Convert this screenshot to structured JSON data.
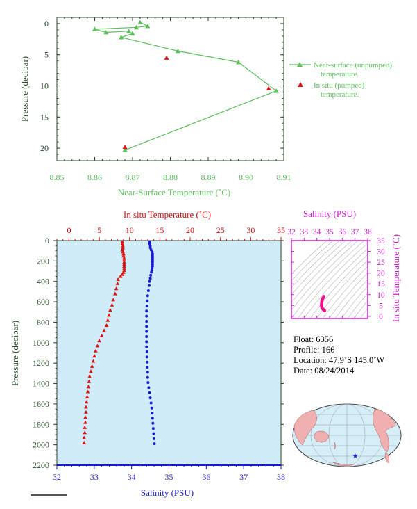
{
  "colors": {
    "near_surface": "#5cbf5c",
    "temperature": "#dd1111",
    "salinity": "#1a1ad6",
    "ts_magenta": "#cc22cc",
    "ts_points": "#ee1188",
    "plot_bg": "#d0ecf8",
    "axis_dark": "#2a4a2a",
    "land": "#f0b0b0",
    "ocean": "#d6eef8"
  },
  "top_chart": {
    "xlabel": "Near-Surface Temperature (˚C)",
    "ylabel": "Pressure (decibar)",
    "xticks": [
      "8.85",
      "8.86",
      "8.87",
      "8.88",
      "8.89",
      "8.90",
      "8.91"
    ],
    "yticks": [
      "0",
      "5",
      "10",
      "15",
      "20"
    ],
    "legend": {
      "line1": "Near-surface (unpumped)",
      "line2": "temperature.",
      "line3": "In situ (pumped)",
      "line4": "temperature."
    }
  },
  "main_chart": {
    "top_xlabel": "In situ Temperature (˚C)",
    "bottom_xlabel": "Salinity (PSU)",
    "ylabel": "Pressure (decibar)",
    "temp_ticks": [
      "0",
      "5",
      "10",
      "15",
      "20",
      "25",
      "30",
      "35"
    ],
    "sal_ticks": [
      "32",
      "33",
      "34",
      "35",
      "36",
      "37",
      "38"
    ],
    "pressure_ticks": [
      "0",
      "200",
      "400",
      "600",
      "800",
      "1000",
      "1200",
      "1400",
      "1600",
      "1800",
      "2000",
      "2200"
    ]
  },
  "ts_chart": {
    "title": "Salinity (PSU)",
    "ylabel": "In situ Temperature (˚C)",
    "xticks": [
      "32",
      "33",
      "34",
      "35",
      "36",
      "37",
      "38"
    ],
    "yticks": [
      "0",
      "5",
      "10",
      "15",
      "20",
      "25",
      "30",
      "35"
    ]
  },
  "info": {
    "float": "Float:  6356",
    "profile": "Profile:  166",
    "location": "Location:  47.9˚S  145.0˚W",
    "date": "Date:  08/24/2014"
  },
  "chart_data": [
    {
      "type": "line",
      "xlabel": "Near-Surface Temperature (˚C)",
      "ylabel": "Pressure (decibar)",
      "xlim": [
        8.85,
        8.91
      ],
      "ylim": [
        22,
        -1
      ],
      "series": [
        {
          "name": "Near-surface (unpumped) temperature.",
          "points": [
            [
              8.872,
              -0.2
            ],
            [
              8.874,
              0.4
            ],
            [
              8.871,
              0.6
            ],
            [
              8.86,
              0.9
            ],
            [
              8.863,
              1.4
            ],
            [
              8.869,
              1.2
            ],
            [
              8.87,
              1.6
            ],
            [
              8.867,
              2.2
            ],
            [
              8.882,
              4.4
            ],
            [
              8.898,
              6.2
            ],
            [
              8.908,
              10.8
            ],
            [
              8.868,
              20.3
            ]
          ]
        },
        {
          "name": "In situ (pumped) temperature.",
          "points": [
            [
              8.879,
              5.5
            ],
            [
              8.906,
              10.4
            ],
            [
              8.868,
              19.8
            ]
          ]
        }
      ]
    },
    {
      "type": "scatter",
      "xlabel": "In situ Temperature (˚C)",
      "ylabel": "Pressure (decibar)",
      "xlim": [
        -2,
        35
      ],
      "ylim": [
        2200,
        0
      ],
      "series": [
        {
          "points": [
            [
              8.8,
              10
            ],
            [
              8.8,
              30
            ],
            [
              8.9,
              50
            ],
            [
              8.9,
              70
            ],
            [
              8.8,
              90
            ],
            [
              8.9,
              110
            ],
            [
              9.0,
              130
            ],
            [
              9.0,
              150
            ],
            [
              9.1,
              170
            ],
            [
              9.1,
              190
            ],
            [
              9.1,
              210
            ],
            [
              9.1,
              230
            ],
            [
              9.1,
              250
            ],
            [
              9.1,
              270
            ],
            [
              9.1,
              290
            ],
            [
              9.0,
              310
            ],
            [
              8.8,
              330
            ],
            [
              8.5,
              350
            ],
            [
              8.1,
              380
            ],
            [
              8.0,
              420
            ],
            [
              7.8,
              470
            ],
            [
              7.6,
              520
            ],
            [
              7.3,
              580
            ],
            [
              7.1,
              630
            ],
            [
              6.8,
              680
            ],
            [
              6.6,
              730
            ],
            [
              6.4,
              780
            ],
            [
              6.2,
              830
            ],
            [
              5.8,
              880
            ],
            [
              5.4,
              930
            ],
            [
              5.0,
              980
            ],
            [
              4.7,
              1030
            ],
            [
              4.4,
              1080
            ],
            [
              4.2,
              1130
            ],
            [
              4.0,
              1180
            ],
            [
              3.8,
              1230
            ],
            [
              3.6,
              1280
            ],
            [
              3.4,
              1330
            ],
            [
              3.3,
              1380
            ],
            [
              3.2,
              1430
            ],
            [
              3.1,
              1480
            ],
            [
              3.0,
              1530
            ],
            [
              2.9,
              1580
            ],
            [
              2.8,
              1630
            ],
            [
              2.8,
              1680
            ],
            [
              2.7,
              1730
            ],
            [
              2.7,
              1780
            ],
            [
              2.6,
              1830
            ],
            [
              2.6,
              1880
            ],
            [
              2.5,
              1930
            ],
            [
              2.5,
              1980
            ]
          ]
        }
      ]
    },
    {
      "type": "scatter",
      "xlabel": "Salinity (PSU)",
      "ylabel": "Pressure (decibar)",
      "xlim": [
        32,
        38
      ],
      "ylim": [
        2200,
        0
      ],
      "series": [
        {
          "points": [
            [
              34.48,
              10
            ],
            [
              34.48,
              30
            ],
            [
              34.5,
              50
            ],
            [
              34.5,
              70
            ],
            [
              34.52,
              90
            ],
            [
              34.55,
              110
            ],
            [
              34.56,
              130
            ],
            [
              34.56,
              150
            ],
            [
              34.56,
              170
            ],
            [
              34.56,
              190
            ],
            [
              34.56,
              210
            ],
            [
              34.56,
              230
            ],
            [
              34.56,
              250
            ],
            [
              34.55,
              270
            ],
            [
              34.54,
              290
            ],
            [
              34.53,
              310
            ],
            [
              34.51,
              340
            ],
            [
              34.5,
              370
            ],
            [
              34.48,
              400
            ],
            [
              34.47,
              440
            ],
            [
              34.45,
              490
            ],
            [
              34.43,
              540
            ],
            [
              34.42,
              590
            ],
            [
              34.41,
              640
            ],
            [
              34.4,
              690
            ],
            [
              34.4,
              740
            ],
            [
              34.4,
              790
            ],
            [
              34.4,
              840
            ],
            [
              34.4,
              890
            ],
            [
              34.4,
              940
            ],
            [
              34.4,
              990
            ],
            [
              34.4,
              1040
            ],
            [
              34.41,
              1090
            ],
            [
              34.41,
              1140
            ],
            [
              34.42,
              1190
            ],
            [
              34.42,
              1240
            ],
            [
              34.43,
              1290
            ],
            [
              34.43,
              1340
            ],
            [
              34.44,
              1390
            ],
            [
              34.46,
              1440
            ],
            [
              34.48,
              1490
            ],
            [
              34.5,
              1540
            ],
            [
              34.52,
              1590
            ],
            [
              34.54,
              1640
            ],
            [
              34.55,
              1690
            ],
            [
              34.56,
              1740
            ],
            [
              34.57,
              1790
            ],
            [
              34.58,
              1840
            ],
            [
              34.59,
              1890
            ],
            [
              34.6,
              1940
            ],
            [
              34.61,
              1990
            ]
          ]
        }
      ]
    },
    {
      "type": "scatter",
      "xlabel": "Salinity (PSU)",
      "ylabel": "In situ Temperature (˚C)",
      "xlim": [
        32,
        38
      ],
      "ylim": [
        -1,
        35
      ],
      "series": [
        {
          "points": [
            [
              34.55,
              9.1
            ],
            [
              34.52,
              8.8
            ],
            [
              34.48,
              8.4
            ],
            [
              34.45,
              8.0
            ],
            [
              34.42,
              7.5
            ],
            [
              34.4,
              7.0
            ],
            [
              34.39,
              6.5
            ],
            [
              34.38,
              6.0
            ],
            [
              34.37,
              5.5
            ],
            [
              34.37,
              5.0
            ],
            [
              34.38,
              4.5
            ],
            [
              34.4,
              4.0
            ],
            [
              34.44,
              3.6
            ],
            [
              34.49,
              3.3
            ],
            [
              34.54,
              3.0
            ],
            [
              34.58,
              2.8
            ],
            [
              34.61,
              2.6
            ]
          ]
        }
      ]
    }
  ]
}
